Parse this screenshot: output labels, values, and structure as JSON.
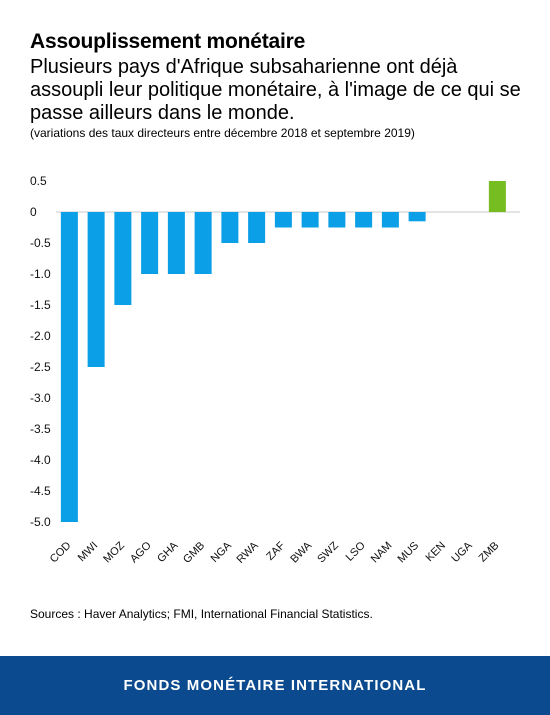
{
  "title": "Assouplissement monétaire",
  "subtitle": "Plusieurs pays d'Afrique subsaharienne ont déjà assoupli leur politique monétaire, à l'image de ce qui se passe ailleurs dans le monde.",
  "note": "(variations des taux directeurs entre décembre 2018 et septembre 2019)",
  "source": "Sources : Haver Analytics; FMI, International Financial Statistics.",
  "footer": "FONDS MONÉTAIRE INTERNATIONAL",
  "colors": {
    "negative": "#0a9fe6",
    "positive": "#76bd22",
    "footer": "#0b4a8f"
  },
  "chart_data": {
    "type": "bar",
    "categories": [
      "COD",
      "MWI",
      "MOZ",
      "AGO",
      "GHA",
      "GMB",
      "NGA",
      "RWA",
      "ZAF",
      "BWA",
      "SWZ",
      "LSO",
      "NAM",
      "MUS",
      "KEN",
      "UGA",
      "ZMB"
    ],
    "values": [
      -5.0,
      -2.5,
      -1.5,
      -1.0,
      -1.0,
      -1.0,
      -0.5,
      -0.5,
      -0.25,
      -0.25,
      -0.25,
      -0.25,
      -0.25,
      -0.15,
      0,
      0,
      0.5
    ],
    "yticks": [
      "0.5",
      "0",
      "-0.5",
      "-1.0",
      "-1.5",
      "-2.0",
      "-2.5",
      "-3.0",
      "-3.5",
      "-4.0",
      "-4.5",
      "-5.0"
    ],
    "ylim": [
      -5.0,
      0.5
    ],
    "grid": false,
    "title": "",
    "xlabel": "",
    "ylabel": ""
  }
}
